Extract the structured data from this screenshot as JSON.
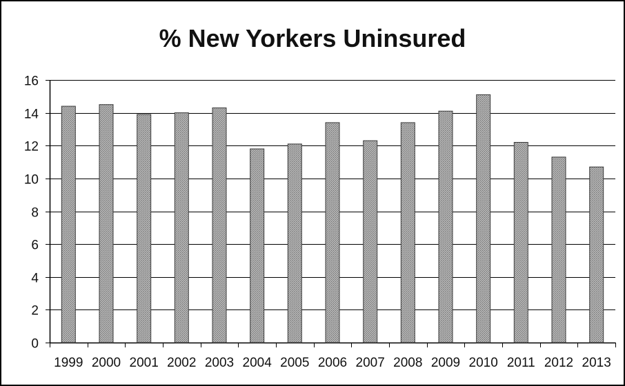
{
  "chart_data": {
    "type": "bar",
    "title": "% New Yorkers Uninsured",
    "xlabel": "",
    "ylabel": "",
    "categories": [
      "1999",
      "2000",
      "2001",
      "2002",
      "2003",
      "2004",
      "2005",
      "2006",
      "2007",
      "2008",
      "2009",
      "2010",
      "2011",
      "2012",
      "2013"
    ],
    "values": [
      14.4,
      14.5,
      13.9,
      14.0,
      14.3,
      11.8,
      12.1,
      13.4,
      12.3,
      13.4,
      14.1,
      15.1,
      12.2,
      11.3,
      10.7
    ],
    "ylim": [
      0,
      16
    ],
    "yticks": [
      0,
      2,
      4,
      6,
      8,
      10,
      12,
      14,
      16
    ],
    "grid": true,
    "legend": "none",
    "colors": {
      "bar_fill": "#a6a6a6",
      "bar_stroke": "#3a3a3a",
      "grid": "#000000",
      "frame": "#000000",
      "text": "#111111"
    }
  }
}
